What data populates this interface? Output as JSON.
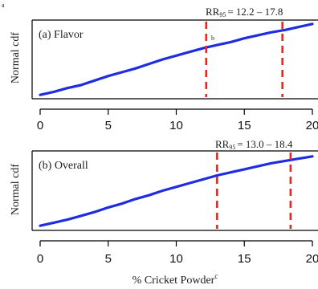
{
  "figure": {
    "superscript_a": "a",
    "xlabel": "% Cricket Powder",
    "xlabel_superscript": "c"
  },
  "colors": {
    "curve": "#1f2de0",
    "rr_lines": "#e8261c",
    "axes": "#000000"
  },
  "chart_data": [
    {
      "type": "line",
      "panel_label": "(a) Flavor",
      "ylabel": "Normal cdf",
      "rr_label": "RR",
      "rr_subscript": "95",
      "rr_range": "= 12.2 – 17.8",
      "point_label": "b",
      "xlim": [
        0,
        20
      ],
      "x_ticks": [
        "0",
        "5",
        "10",
        "15",
        "20"
      ],
      "y_ticks_labeled": false,
      "rr_bounds": [
        12.2,
        17.8
      ],
      "series": [
        {
          "x": [
            0,
            1,
            2,
            3,
            4,
            5,
            6,
            7,
            8,
            9,
            10,
            11,
            12,
            13,
            14,
            15,
            16,
            17,
            18,
            19,
            20
          ],
          "y": [
            0.03,
            0.07,
            0.12,
            0.16,
            0.22,
            0.28,
            0.33,
            0.38,
            0.44,
            0.5,
            0.55,
            0.6,
            0.65,
            0.69,
            0.73,
            0.78,
            0.82,
            0.86,
            0.89,
            0.93,
            0.97
          ]
        }
      ]
    },
    {
      "type": "line",
      "panel_label": "(b) Overall",
      "ylabel": "Normal cdf",
      "rr_label": "RR",
      "rr_subscript": "95",
      "rr_range": "= 13.0 – 18.4",
      "xlim": [
        0,
        20
      ],
      "x_ticks": [
        "0",
        "5",
        "10",
        "15",
        "20"
      ],
      "y_ticks_labeled": false,
      "rr_bounds": [
        13.0,
        18.4
      ],
      "series": [
        {
          "x": [
            0,
            1,
            2,
            3,
            4,
            5,
            6,
            7,
            8,
            9,
            10,
            11,
            12,
            13,
            14,
            15,
            16,
            17,
            18,
            19,
            20
          ],
          "y": [
            0.04,
            0.08,
            0.12,
            0.17,
            0.22,
            0.28,
            0.33,
            0.39,
            0.44,
            0.5,
            0.55,
            0.6,
            0.65,
            0.7,
            0.74,
            0.78,
            0.82,
            0.86,
            0.89,
            0.92,
            0.95
          ]
        }
      ]
    }
  ]
}
